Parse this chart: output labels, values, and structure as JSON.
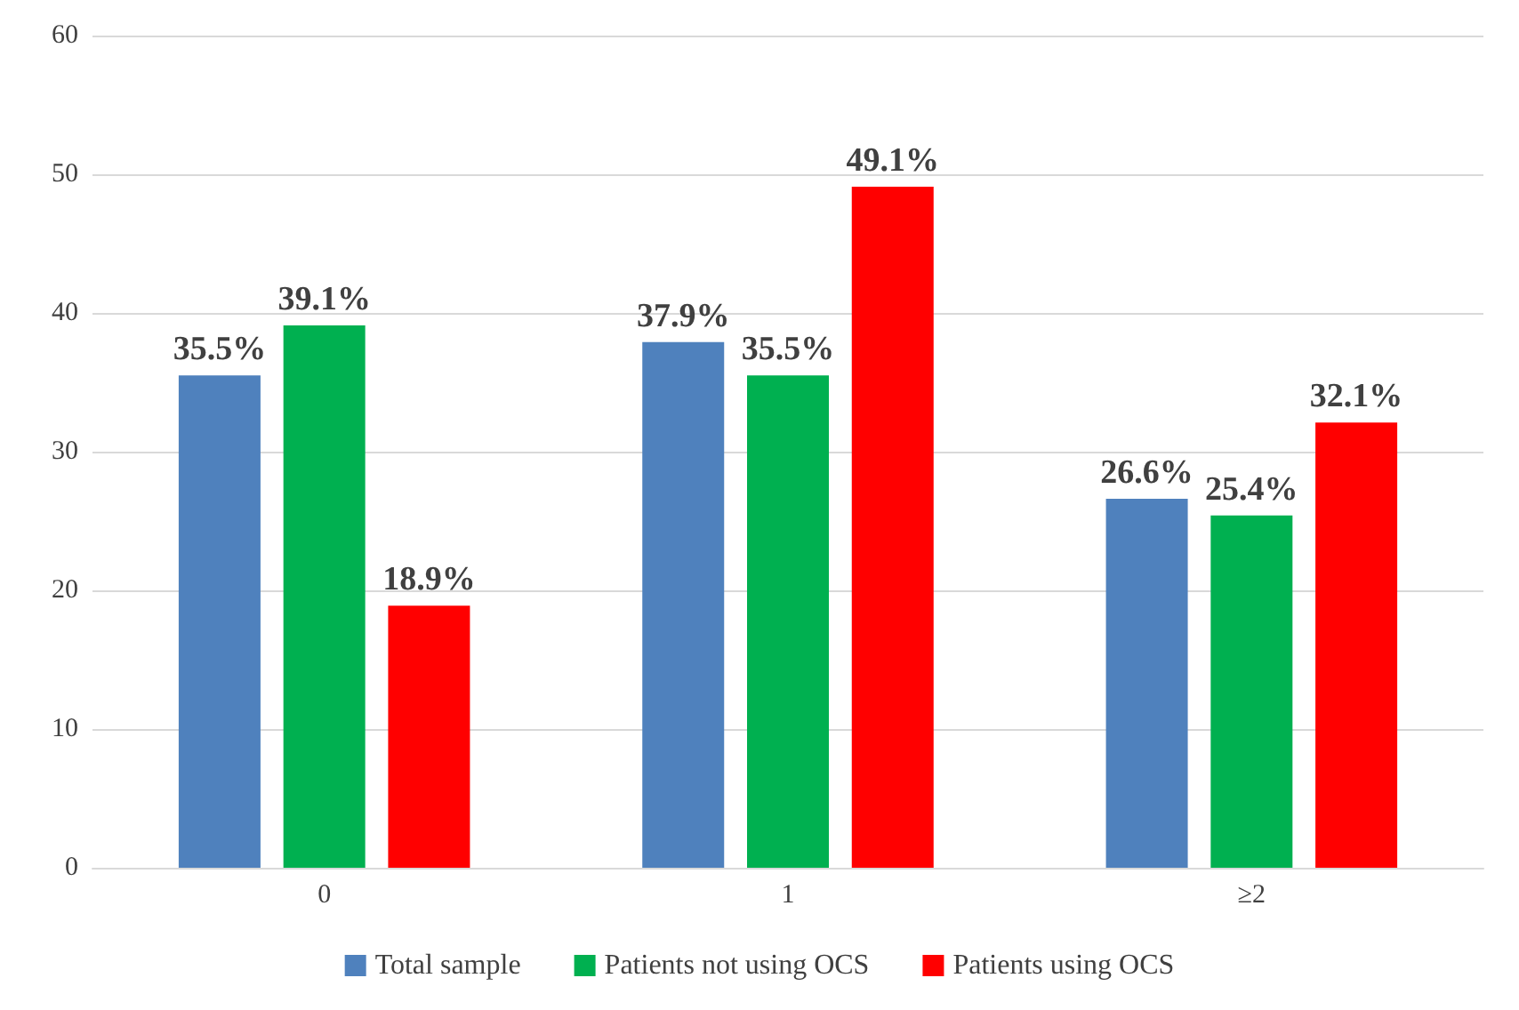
{
  "chart_data": {
    "type": "bar",
    "categories": [
      "0",
      "1",
      "≥2"
    ],
    "series": [
      {
        "name": "Total sample",
        "color": "#4f81bd",
        "values": [
          35.5,
          37.9,
          26.6
        ],
        "value_labels": [
          "35.5%",
          "37.9%",
          "26.6%"
        ]
      },
      {
        "name": "Patients not using OCS",
        "color": "#00b050",
        "values": [
          39.1,
          35.5,
          25.4
        ],
        "value_labels": [
          "39.1%",
          "35.5%",
          "25.4%"
        ]
      },
      {
        "name": "Patients using OCS",
        "color": "#ff0000",
        "values": [
          18.9,
          49.1,
          32.1
        ],
        "value_labels": [
          "18.9%",
          "49.1%",
          "32.1%"
        ]
      }
    ],
    "ylim": [
      0,
      60
    ],
    "yticks": [
      0,
      10,
      20,
      30,
      40,
      50,
      60
    ],
    "grid": "y",
    "legend": "bottom"
  }
}
